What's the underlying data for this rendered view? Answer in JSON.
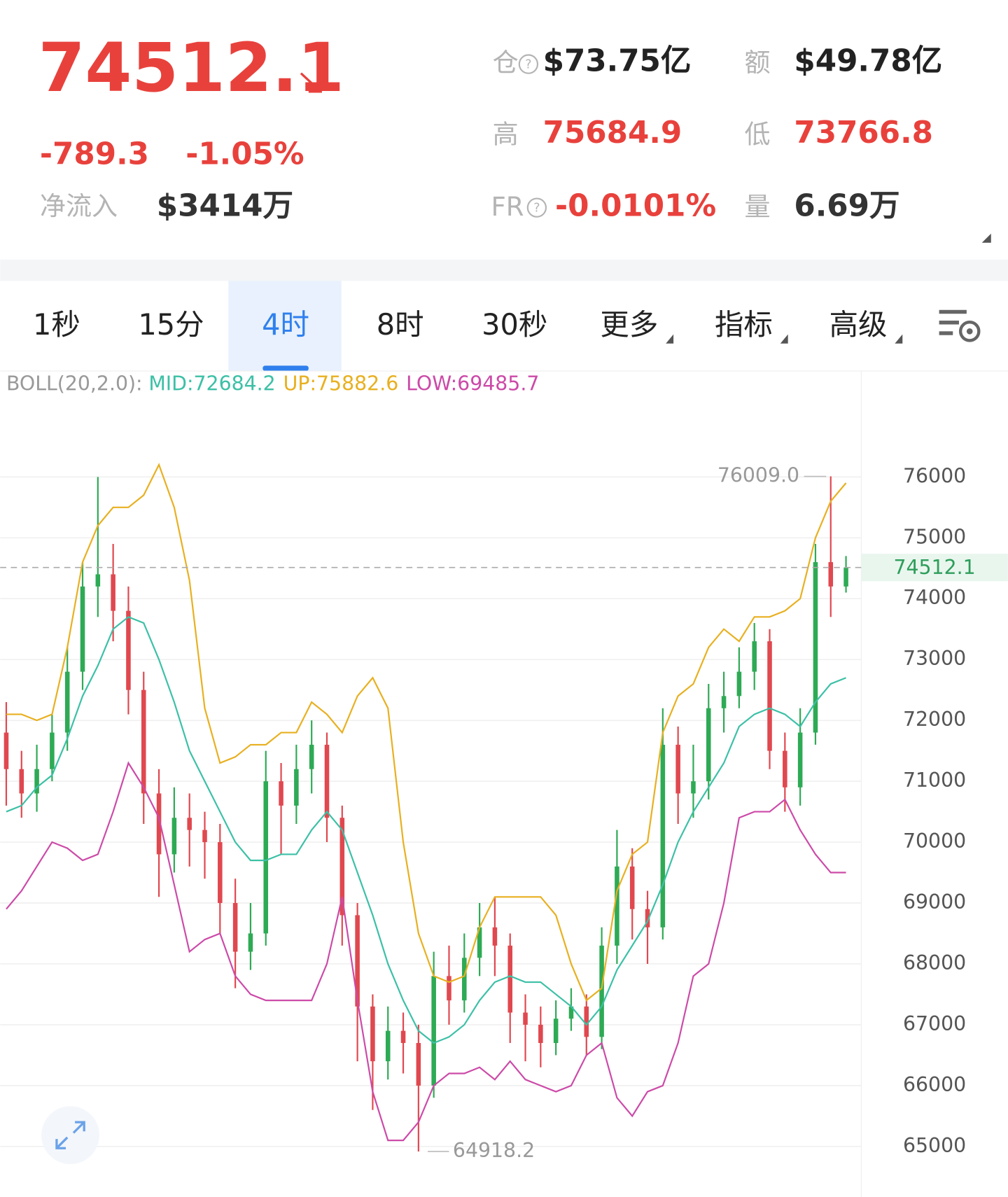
{
  "header": {
    "price": "74512.1",
    "change": "-789.3",
    "change_pct": "-1.05%",
    "net_inflow_label": "净流入",
    "net_inflow": "$3414万",
    "stats": [
      {
        "label": "仓",
        "value": "$73.75亿"
      },
      {
        "label": "额",
        "value": "$49.78亿"
      },
      {
        "label": "高",
        "value": "75684.9"
      },
      {
        "label": "低",
        "value": "73766.8"
      },
      {
        "label": "FR",
        "value": "-0.0101%"
      },
      {
        "label": "量",
        "value": "6.69万"
      }
    ]
  },
  "tabs": {
    "items": [
      "1秒",
      "15分",
      "4时",
      "8时",
      "30秒",
      "更多",
      "指标",
      "高级"
    ],
    "active": 2
  },
  "chart_data": {
    "type": "candlestick",
    "indicator": "BOLL(20,2.0):",
    "up_color": "#2eaa55",
    "down_color": "#e0484f",
    "open": [
      71800,
      71200,
      70800,
      71200,
      71800,
      72800,
      74200,
      74400,
      73800,
      72500,
      70800,
      69800,
      70400,
      70200,
      70000,
      69000,
      68200,
      68500,
      71000,
      70600,
      71200,
      71600,
      70400,
      68800,
      67300,
      66400,
      66900,
      66700,
      66000,
      67800,
      67400,
      68100,
      68600,
      68300,
      67200,
      67000,
      66700,
      67100,
      67300,
      66800,
      68300,
      69600,
      68900,
      68600,
      71600,
      70800,
      71000,
      72200,
      72400,
      72800,
      73300,
      71500,
      70900,
      71800,
      74600,
      74200
    ],
    "high": [
      72300,
      71500,
      71600,
      72100,
      73200,
      74600,
      76000,
      74900,
      74200,
      72800,
      71200,
      70900,
      70800,
      70500,
      70300,
      69400,
      69000,
      71500,
      71300,
      71600,
      72000,
      71800,
      70600,
      69000,
      67500,
      67300,
      67200,
      67000,
      68200,
      68300,
      68500,
      69000,
      69100,
      68500,
      67500,
      67300,
      67400,
      67600,
      67500,
      68600,
      70200,
      69900,
      69200,
      72200,
      71900,
      71600,
      72600,
      72800,
      73200,
      73600,
      73500,
      71800,
      72200,
      74900,
      76009,
      74700
    ],
    "low": [
      70600,
      70400,
      70500,
      71000,
      71500,
      72500,
      73700,
      73300,
      72100,
      70300,
      69100,
      69500,
      69600,
      69400,
      68500,
      67600,
      67900,
      68300,
      69800,
      70300,
      70800,
      70000,
      68300,
      66400,
      65600,
      66100,
      66200,
      64918.2,
      65800,
      67000,
      67200,
      67800,
      67800,
      66700,
      66400,
      66300,
      66500,
      66900,
      66500,
      66600,
      68000,
      68400,
      68000,
      68400,
      70300,
      70400,
      70700,
      71800,
      72200,
      72500,
      71200,
      70500,
      70600,
      71600,
      73700,
      74100
    ],
    "close": [
      71200,
      70800,
      71200,
      71800,
      72800,
      74200,
      74400,
      73800,
      72500,
      70800,
      69800,
      70400,
      70200,
      70000,
      69000,
      68200,
      68500,
      71000,
      70600,
      71200,
      71600,
      70400,
      68800,
      67300,
      66400,
      66900,
      66700,
      66000,
      67800,
      67400,
      68100,
      68600,
      68300,
      67200,
      67000,
      66700,
      67100,
      67300,
      66800,
      68300,
      69600,
      68900,
      68600,
      71600,
      70800,
      71000,
      72200,
      72400,
      72800,
      73300,
      71500,
      70900,
      71800,
      74600,
      74200,
      74512.1
    ],
    "series": [
      {
        "name": "MID:72684.2",
        "color": "#3cc0a6",
        "values": [
          70500,
          70600,
          70900,
          71100,
          71700,
          72400,
          72900,
          73500,
          73700,
          73600,
          73000,
          72300,
          71500,
          71000,
          70500,
          70000,
          69700,
          69700,
          69800,
          69800,
          70200,
          70500,
          70200,
          69500,
          68800,
          68000,
          67400,
          66900,
          66700,
          66800,
          67000,
          67400,
          67700,
          67800,
          67700,
          67700,
          67500,
          67300,
          67000,
          67300,
          67900,
          68300,
          68700,
          69300,
          70000,
          70500,
          70900,
          71300,
          71900,
          72100,
          72200,
          72100,
          71900,
          72300,
          72600,
          72700
        ]
      },
      {
        "name": "UP:75882.6",
        "color": "#e8b020",
        "values": [
          72100,
          72100,
          72000,
          72100,
          73200,
          74600,
          75200,
          75500,
          75500,
          75700,
          76200,
          75500,
          74300,
          72200,
          71300,
          71400,
          71600,
          71600,
          71800,
          71800,
          72300,
          72100,
          71800,
          72400,
          72700,
          72200,
          70000,
          68500,
          67800,
          67700,
          67800,
          68600,
          69100,
          69100,
          69100,
          69100,
          68800,
          68000,
          67400,
          67600,
          69200,
          69800,
          70000,
          71800,
          72400,
          72600,
          73200,
          73500,
          73300,
          73700,
          73700,
          73800,
          74000,
          75000,
          75600,
          75900
        ]
      },
      {
        "name": "LOW:69485.7",
        "color": "#cc4aa8",
        "values": [
          68900,
          69200,
          69600,
          70000,
          69900,
          69700,
          69800,
          70500,
          71300,
          70900,
          70400,
          69300,
          68200,
          68400,
          68500,
          67800,
          67500,
          67400,
          67400,
          67400,
          67400,
          68000,
          69100,
          67400,
          65900,
          65100,
          65100,
          65400,
          66000,
          66200,
          66200,
          66300,
          66100,
          66400,
          66100,
          66000,
          65900,
          66000,
          66500,
          66700,
          65800,
          65500,
          65900,
          66000,
          66700,
          67800,
          68000,
          69000,
          70400,
          70500,
          70500,
          70700,
          70200,
          69800,
          69500,
          69500
        ]
      }
    ],
    "ylim": [
      64170,
      77740
    ],
    "yticks": [
      65000,
      66000,
      67000,
      68000,
      69000,
      70000,
      71000,
      72000,
      73000,
      74000,
      75000,
      76000
    ],
    "grid": true,
    "last_price": 74512.1,
    "high_label": {
      "value": 76009,
      "label": "76009.0"
    },
    "low_label": 64918.2
  }
}
